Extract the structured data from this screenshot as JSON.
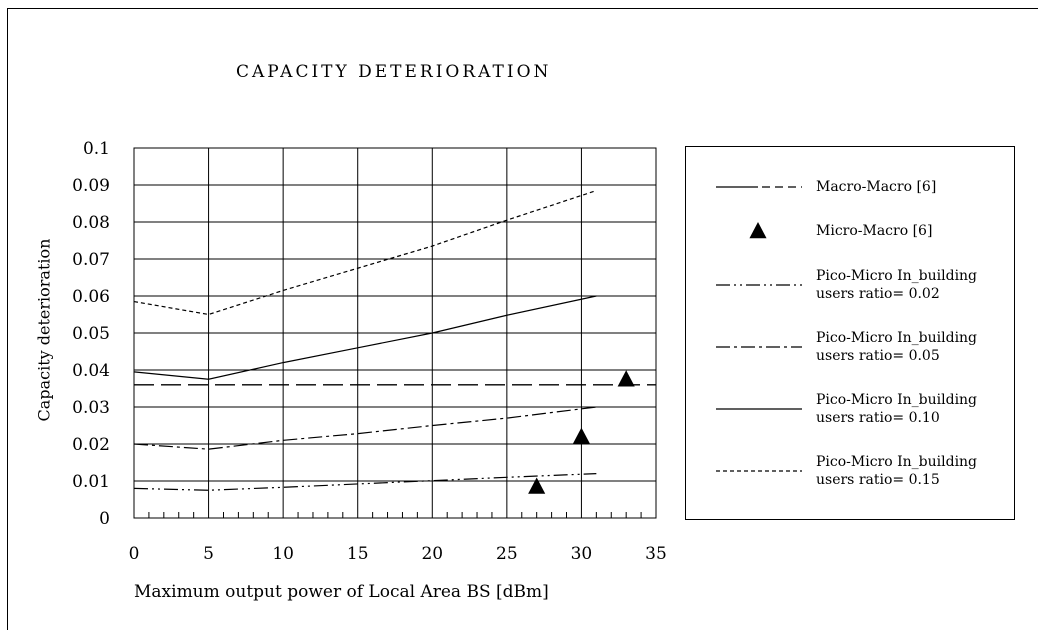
{
  "chart_data": {
    "type": "line",
    "title": "CAPACITY DETERIORATION",
    "xlabel": "Maximum output power of Local Area BS [dBm]",
    "ylabel": "Capacity deterioration",
    "xlim": [
      0,
      35
    ],
    "ylim": [
      0,
      0.1
    ],
    "x_ticks": [
      "0",
      "5",
      "10",
      "15",
      "20",
      "25",
      "30",
      "35"
    ],
    "y_ticks": [
      "0",
      "0.01",
      "0.02",
      "0.03",
      "0.04",
      "0.05",
      "0.06",
      "0.07",
      "0.08",
      "0.09",
      "0.1"
    ],
    "grid": true,
    "legend_position": "right",
    "series": [
      {
        "name": "Macro-Macro [6]",
        "style": "longdash",
        "points": [
          [
            0,
            0.036
          ],
          [
            35,
            0.036
          ]
        ]
      },
      {
        "name": "Micro-Macro [6]",
        "style": "triangle",
        "points": [
          [
            27,
            0.0085
          ],
          [
            30,
            0.022
          ],
          [
            33,
            0.0375
          ]
        ]
      },
      {
        "name": "Pico-Micro In_building users ratio= 0.02",
        "style": "dashdotdot",
        "points": [
          [
            0,
            0.008
          ],
          [
            5,
            0.0075
          ],
          [
            10,
            0.0083
          ],
          [
            15,
            0.0092
          ],
          [
            20,
            0.0101
          ],
          [
            25,
            0.011
          ],
          [
            31,
            0.012
          ]
        ]
      },
      {
        "name": "Pico-Micro In_building users ratio= 0.05",
        "style": "dashdot",
        "points": [
          [
            0,
            0.02
          ],
          [
            5,
            0.0186
          ],
          [
            10,
            0.021
          ],
          [
            15,
            0.0228
          ],
          [
            20,
            0.025
          ],
          [
            25,
            0.027
          ],
          [
            31,
            0.03
          ]
        ]
      },
      {
        "name": "Pico-Micro In_building users ratio= 0.10",
        "style": "solid",
        "points": [
          [
            0,
            0.0395
          ],
          [
            5,
            0.0375
          ],
          [
            10,
            0.042
          ],
          [
            15,
            0.046
          ],
          [
            20,
            0.05
          ],
          [
            25,
            0.0548
          ],
          [
            31,
            0.06
          ]
        ]
      },
      {
        "name": "Pico-Micro In_building users ratio= 0.15",
        "style": "dotted",
        "points": [
          [
            0,
            0.0585
          ],
          [
            5,
            0.055
          ],
          [
            10,
            0.0615
          ],
          [
            15,
            0.0675
          ],
          [
            20,
            0.0735
          ],
          [
            25,
            0.0805
          ],
          [
            31,
            0.0885
          ]
        ]
      }
    ]
  },
  "legend": {
    "items": [
      {
        "label": "Macro-Macro [6]"
      },
      {
        "label": "Micro-Macro [6]"
      },
      {
        "label": "Pico-Micro In_building\nusers ratio= 0.02"
      },
      {
        "label": "Pico-Micro In_building\nusers ratio= 0.05"
      },
      {
        "label": "Pico-Micro In_building\nusers ratio= 0.10"
      },
      {
        "label": "Pico-Micro In_building\nusers ratio= 0.15"
      }
    ]
  }
}
